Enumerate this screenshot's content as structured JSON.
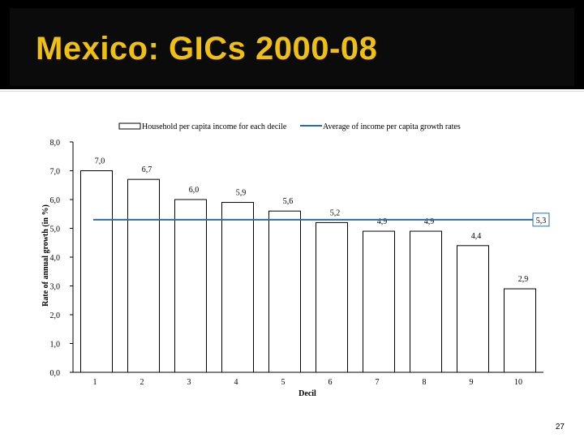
{
  "slide": {
    "title": "Mexico: GICs 2000-08",
    "page_number": "27"
  },
  "colors": {
    "title": "#f0c010",
    "average_line": "#2e6da4",
    "bar_fill": "#ffffff",
    "bar_stroke": "#000000"
  },
  "chart_data": {
    "type": "bar",
    "categories": [
      "1",
      "2",
      "3",
      "4",
      "5",
      "6",
      "7",
      "8",
      "9",
      "10"
    ],
    "series": [
      {
        "name": "Household per capita income for each decile",
        "values": [
          7.0,
          6.7,
          6.0,
          5.9,
          5.6,
          5.2,
          4.9,
          4.9,
          4.4,
          2.9
        ],
        "value_labels": [
          "7,0",
          "6,7",
          "6,0",
          "5,9",
          "5,6",
          "5,2",
          "4,9",
          "4,9",
          "4,4",
          "2,9"
        ]
      },
      {
        "name": "Average of income per capita growth rates",
        "type": "line",
        "value": 5.3,
        "value_label": "5,3"
      }
    ],
    "xlabel": "Decil",
    "ylabel": "Rate of annual growth (in %)",
    "ylim": [
      0,
      8
    ],
    "yticks": [
      0,
      1,
      2,
      3,
      4,
      5,
      6,
      7,
      8
    ],
    "ytick_labels": [
      "0,0",
      "1,0",
      "2,0",
      "3,0",
      "4,0",
      "5,0",
      "6,0",
      "7,0",
      "8,0"
    ],
    "legend_position": "top",
    "grid": false
  }
}
